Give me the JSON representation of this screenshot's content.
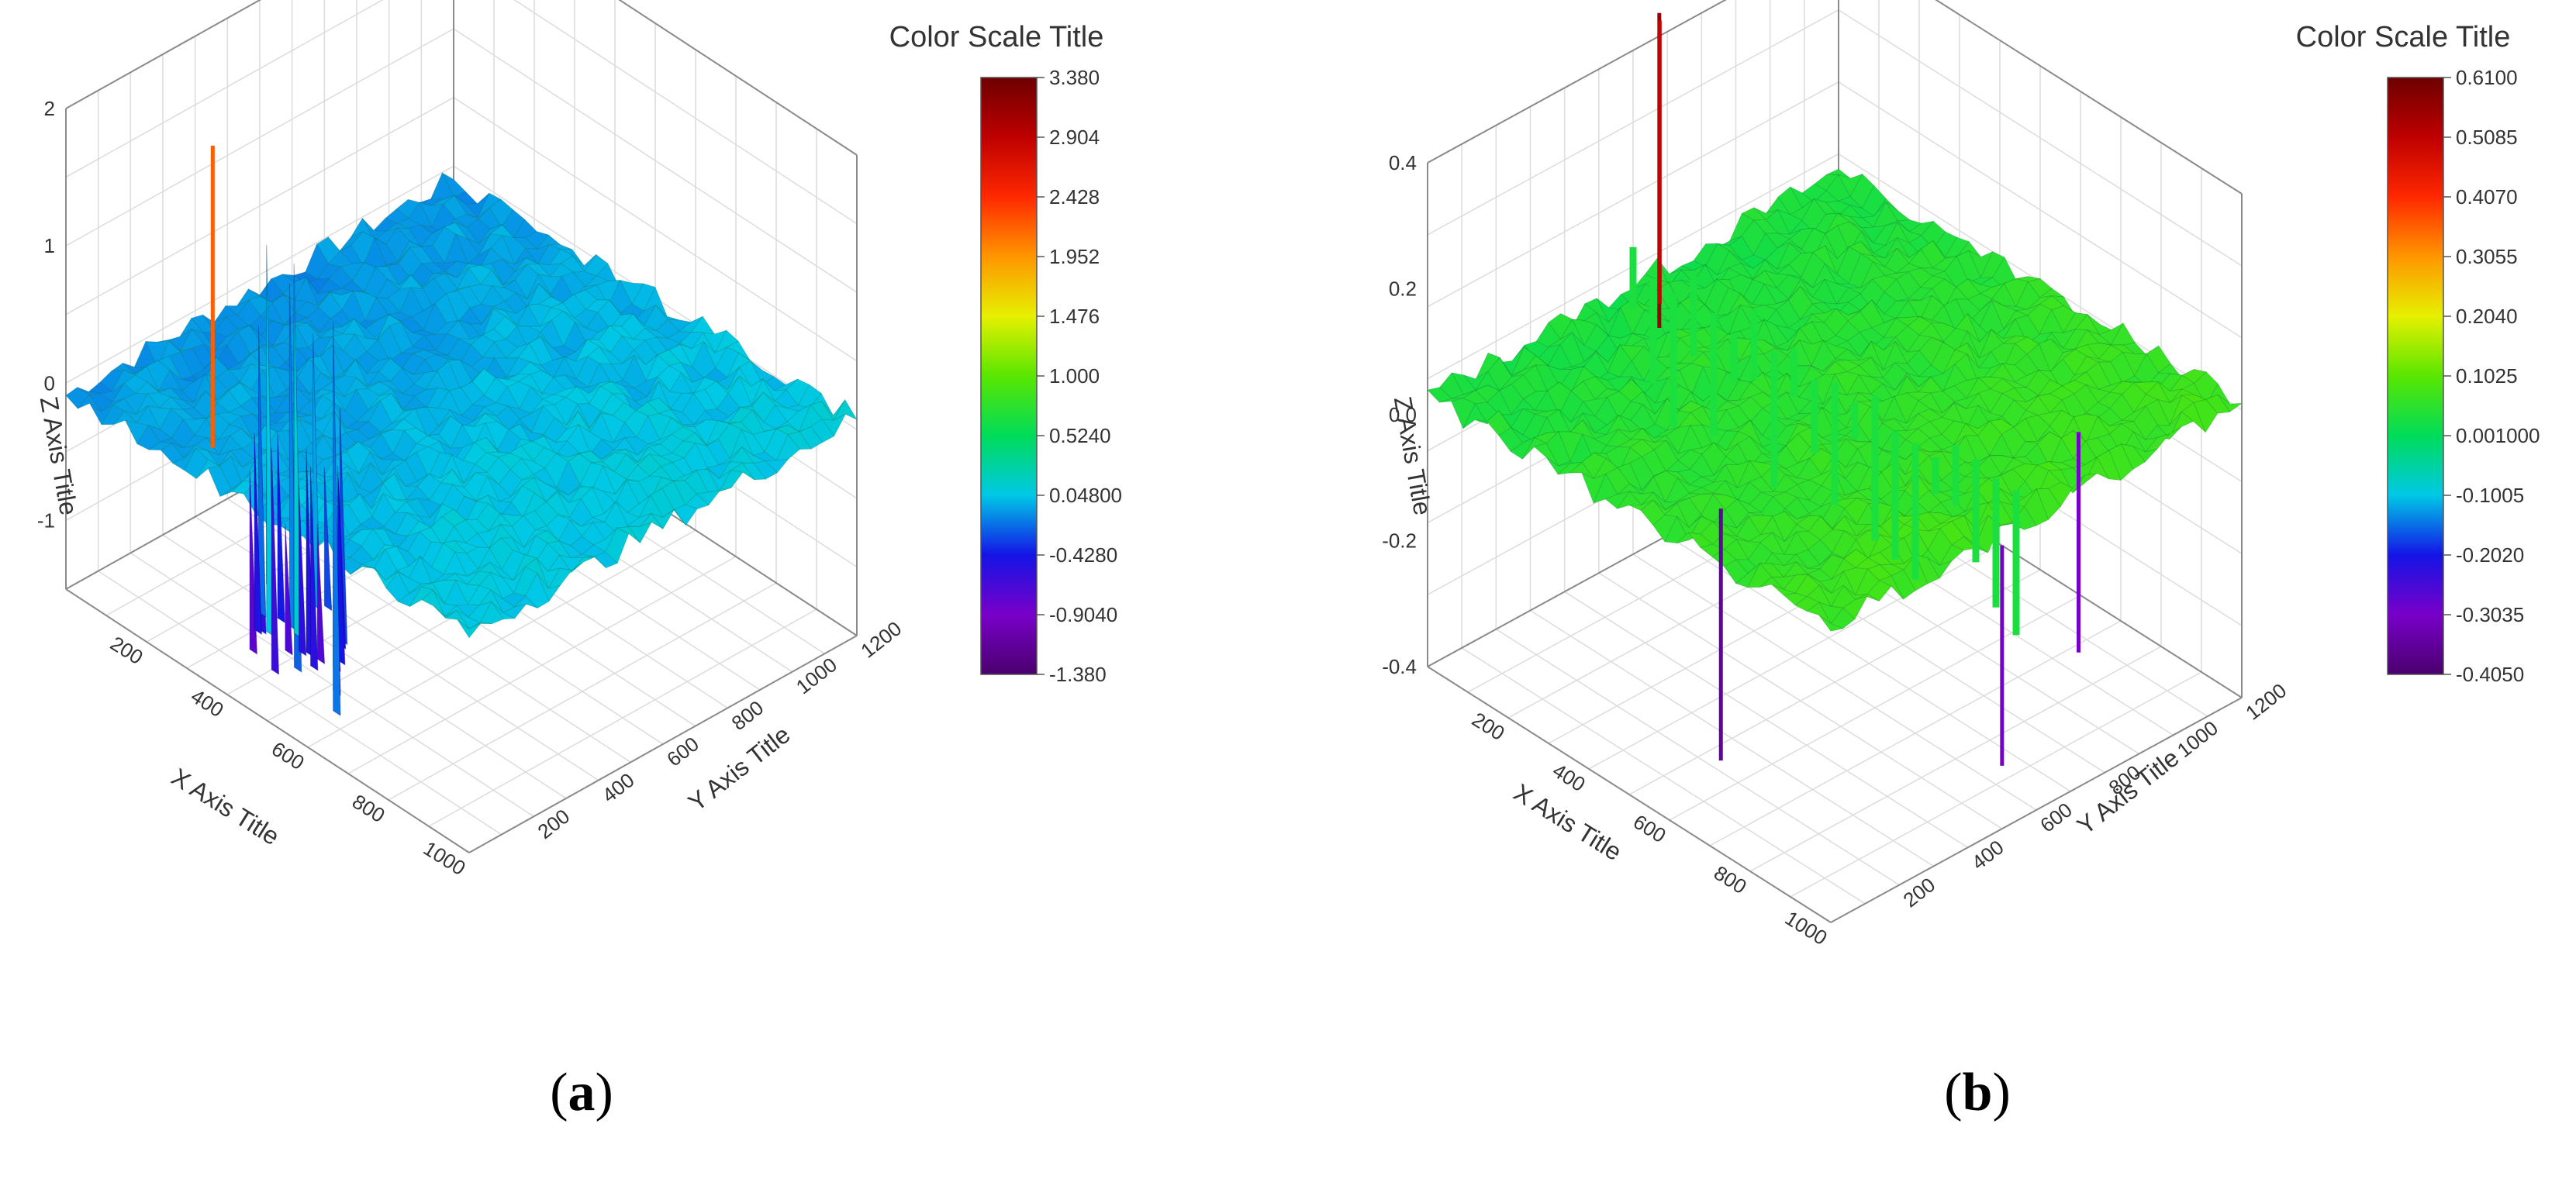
{
  "chart_data": [
    {
      "type": "surface3d",
      "panel_label": "a",
      "xlabel": "X Axis Title",
      "ylabel": "Y Axis Title",
      "zlabel": "Z Axis Title",
      "x_ticks": [
        "200",
        "400",
        "600",
        "800",
        "1000"
      ],
      "y_ticks": [
        "200",
        "400",
        "600",
        "800",
        "1000",
        "1200"
      ],
      "z_ticks": [
        "-1",
        "0",
        "1",
        "2"
      ],
      "xlim": [
        0,
        1000
      ],
      "ylim": [
        0,
        1200
      ],
      "zlim": [
        -1.5,
        2
      ],
      "colorscale": {
        "title": "Color Scale Title",
        "ticks": [
          "3.380",
          "2.904",
          "2.428",
          "1.952",
          "1.476",
          "1.000",
          "0.5240",
          "0.04800",
          "-0.4280",
          "-0.9040",
          "-1.380"
        ],
        "min": -1.38,
        "max": 3.38
      },
      "surface": {
        "base_level": 0,
        "features": [
          {
            "kind": "spike",
            "x": 300,
            "y": 80,
            "z_peak": 2.2
          },
          {
            "kind": "ridge_band",
            "x_range": [
              380,
              620
            ],
            "y_range": [
              50,
              150
            ],
            "z_min": -1.38,
            "z_max": 1.8
          }
        ]
      }
    },
    {
      "type": "surface3d",
      "panel_label": "b",
      "xlabel": "X Axis Title",
      "ylabel": "Y Axis Title",
      "zlabel": "Z Axis Title",
      "x_ticks": [
        "200",
        "400",
        "600",
        "800",
        "1000"
      ],
      "y_ticks": [
        "200",
        "400",
        "600",
        "800",
        "1000",
        "1200"
      ],
      "z_ticks": [
        "-0.4",
        "-0.2",
        "0.0",
        "0.2",
        "0.4"
      ],
      "xlim": [
        0,
        1000
      ],
      "ylim": [
        0,
        1200
      ],
      "zlim": [
        -0.4,
        0.4
      ],
      "colorscale": {
        "title": "Color Scale Title",
        "ticks": [
          "0.6100",
          "0.5085",
          "0.4070",
          "0.3055",
          "0.2040",
          "0.1025",
          "0.001000",
          "-0.1005",
          "-0.2020",
          "-0.3035",
          "-0.4050"
        ],
        "min": -0.405,
        "max": 0.61
      },
      "surface": {
        "base_level": 0.05,
        "features": [
          {
            "kind": "spike",
            "x": 150,
            "y": 500,
            "z_peak": 0.55
          },
          {
            "kind": "spike",
            "x": 100,
            "y": 560,
            "z_peak": 0.5
          },
          {
            "kind": "ridge_line",
            "y": 600,
            "z_min": -0.3,
            "z_max": 0.2
          },
          {
            "kind": "down_spike",
            "x": 600,
            "y": 150,
            "z_peak": -0.35
          },
          {
            "kind": "down_spike",
            "x": 1000,
            "y": 500,
            "z_peak": -0.3
          },
          {
            "kind": "down_spike",
            "x": 850,
            "y": 900,
            "z_peak": -0.3
          }
        ]
      }
    }
  ]
}
